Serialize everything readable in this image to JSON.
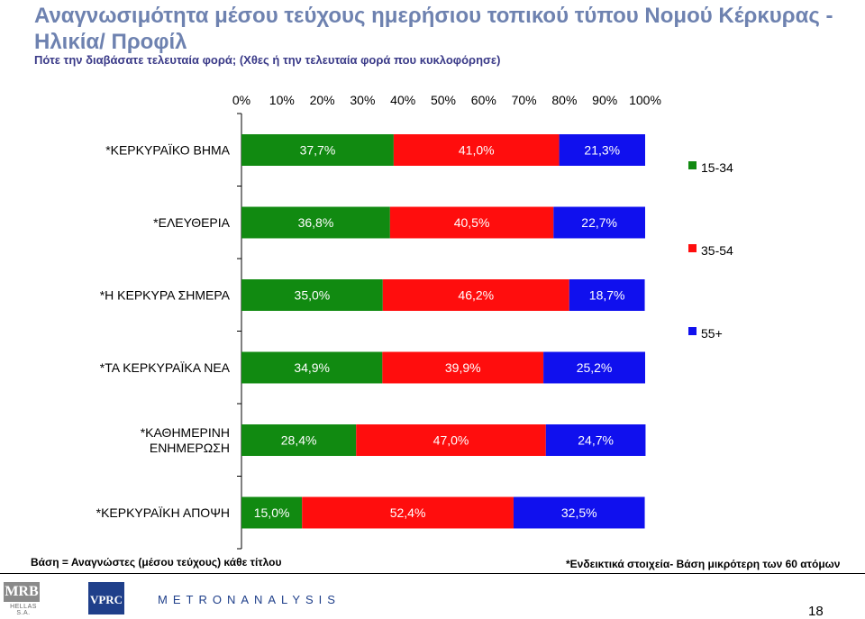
{
  "title": "Αναγνωσιμότητα μέσου τεύχους ημερήσιου τοπικού τύπου Νομού Κέρκυρας  - Ηλικία/ Προφίλ",
  "subtitle": "Πότε την διαβάσατε τελευταία φορά; (Χθες ή την τελευταία φορά που κυκλοφόρησε)",
  "chart_data": {
    "type": "bar",
    "orientation": "horizontal",
    "stacked": "percent",
    "xlim": [
      0,
      100
    ],
    "x_ticks": [
      "0%",
      "10%",
      "20%",
      "30%",
      "40%",
      "50%",
      "60%",
      "70%",
      "80%",
      "90%",
      "100%"
    ],
    "x_axis_position": "top",
    "grid": false,
    "legend_position": "right",
    "categories": [
      [
        "*ΚΕΡΚΥΡΑΪΚΟ ΒΗΜΑ"
      ],
      [
        "*ΕΛΕΥΘΕΡΙΑ"
      ],
      [
        "*Η ΚΕΡΚΥΡΑ ΣΗΜΕΡΑ"
      ],
      [
        "*ΤΑ ΚΕΡΚΥΡΑΪΚΑ ΝΕΑ"
      ],
      [
        "*ΚΑΘΗΜΕΡΙΝΗ",
        "ΕΝΗΜΕΡΩΣΗ"
      ],
      [
        "*ΚΕΡΚΥΡΑΪΚΗ ΑΠΟΨΗ"
      ]
    ],
    "series": [
      {
        "name": "15-34",
        "color": "#118a11",
        "values": [
          37.7,
          36.8,
          35.0,
          34.9,
          28.4,
          15.0
        ],
        "labels": [
          "37,7%",
          "36,8%",
          "35,0%",
          "34,9%",
          "28,4%",
          "15,0%"
        ]
      },
      {
        "name": "35-54",
        "color": "#ff0d0d",
        "values": [
          41.0,
          40.5,
          46.2,
          39.9,
          47.0,
          52.4
        ],
        "labels": [
          "41,0%",
          "40,5%",
          "46,2%",
          "39,9%",
          "47,0%",
          "52,4%"
        ]
      },
      {
        "name": "55+",
        "color": "#1010ee",
        "values": [
          21.3,
          22.7,
          18.7,
          25.2,
          24.7,
          32.5
        ],
        "labels": [
          "21,3%",
          "22,7%",
          "18,7%",
          "25,2%",
          "24,7%",
          "32,5%"
        ]
      }
    ]
  },
  "notes": {
    "base": "Βάση = Αναγνώστες (μέσου τεύχους) κάθε τίτλου",
    "indicative": "*Ενδεικτικά στοιχεία- Βάση μικρότερη των 60 ατόμων"
  },
  "logos": {
    "mrb": "MRB",
    "mrb_sub": "HELLAS S.A.",
    "vprc": "VPRC",
    "metron": "METRONANALYSIS"
  },
  "page_number": "18"
}
